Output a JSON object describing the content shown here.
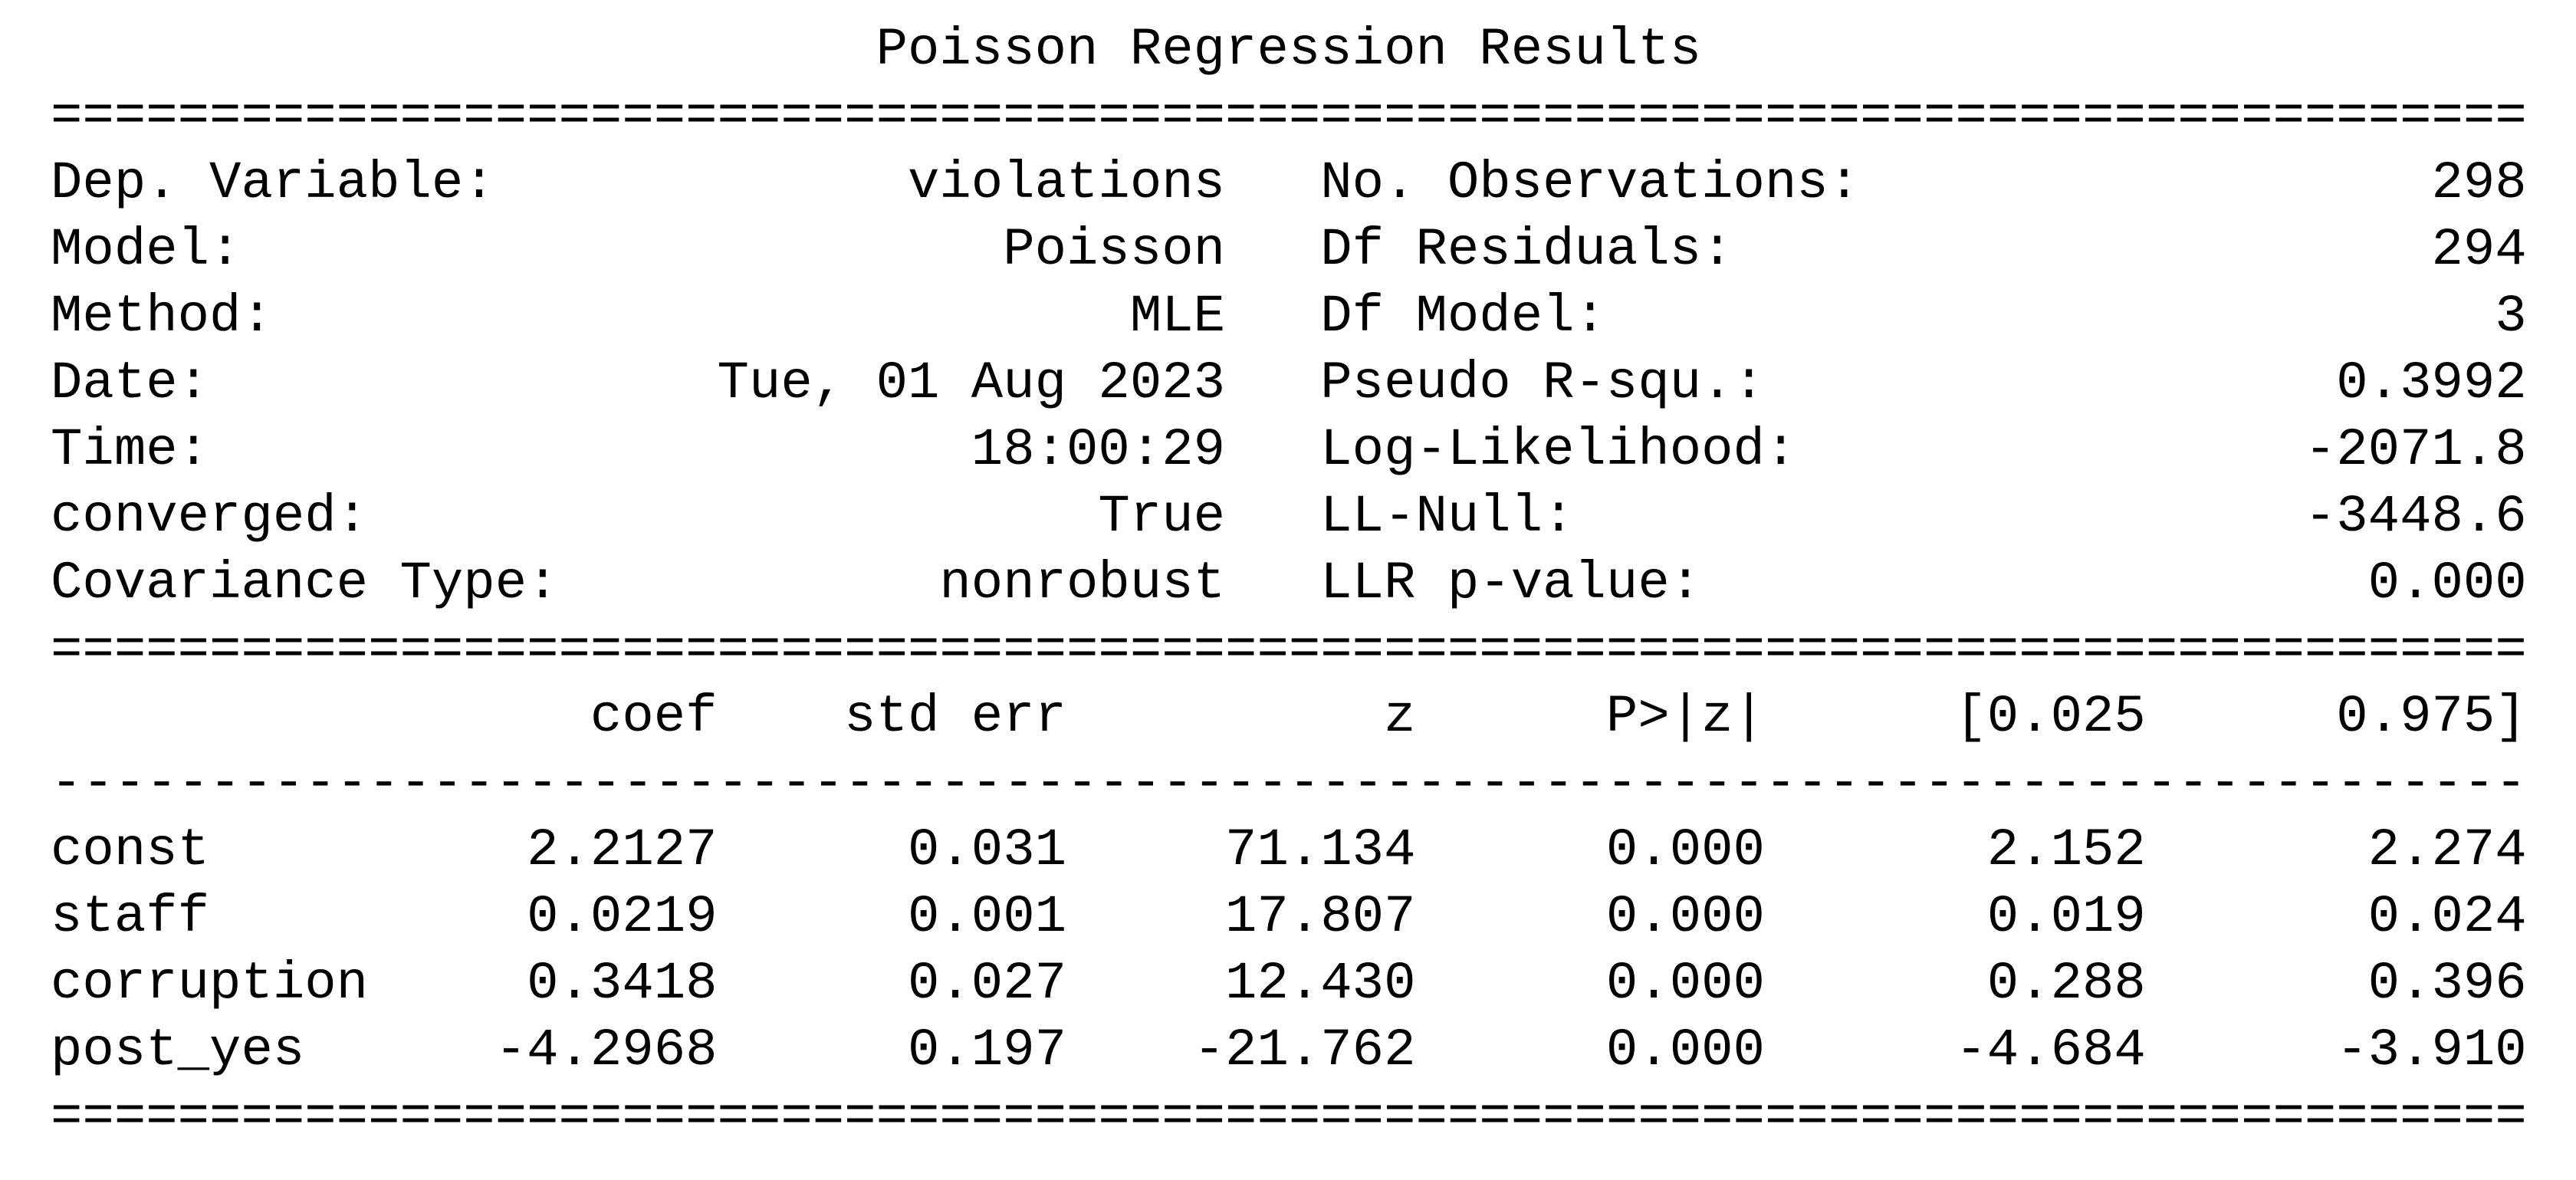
{
  "title": "Poisson Regression Results",
  "rules": {
    "double": "==============================================================================",
    "single": "------------------------------------------------------------------------------"
  },
  "info_left": [
    {
      "label": "Dep. Variable:",
      "value": "violations"
    },
    {
      "label": "Model:",
      "value": "Poisson"
    },
    {
      "label": "Method:",
      "value": "MLE"
    },
    {
      "label": "Date:",
      "value": "Tue, 01 Aug 2023"
    },
    {
      "label": "Time:",
      "value": "18:00:29"
    },
    {
      "label": "converged:",
      "value": "True"
    },
    {
      "label": "Covariance Type:",
      "value": "nonrobust"
    }
  ],
  "info_right": [
    {
      "label": "No. Observations:",
      "value": "298"
    },
    {
      "label": "Df Residuals:",
      "value": "294"
    },
    {
      "label": "Df Model:",
      "value": "3"
    },
    {
      "label": "Pseudo R-squ.:",
      "value": "0.3992"
    },
    {
      "label": "Log-Likelihood:",
      "value": "-2071.8"
    },
    {
      "label": "LL-Null:",
      "value": "-3448.6"
    },
    {
      "label": "LLR p-value:",
      "value": "0.000"
    }
  ],
  "coef_table": {
    "columns": [
      "coef",
      "std err",
      "z",
      "P>|z|",
      "[0.025",
      "0.975]"
    ],
    "rows": [
      {
        "name": "const",
        "values": [
          "2.2127",
          "0.031",
          "71.134",
          "0.000",
          "2.152",
          "2.274"
        ]
      },
      {
        "name": "staff",
        "values": [
          "0.0219",
          "0.001",
          "17.807",
          "0.000",
          "0.019",
          "0.024"
        ]
      },
      {
        "name": "corruption",
        "values": [
          "0.3418",
          "0.027",
          "12.430",
          "0.000",
          "0.288",
          "0.396"
        ]
      },
      {
        "name": "post_yes",
        "values": [
          "-4.2968",
          "0.197",
          "-21.762",
          "0.000",
          "-4.684",
          "-3.910"
        ]
      }
    ]
  }
}
